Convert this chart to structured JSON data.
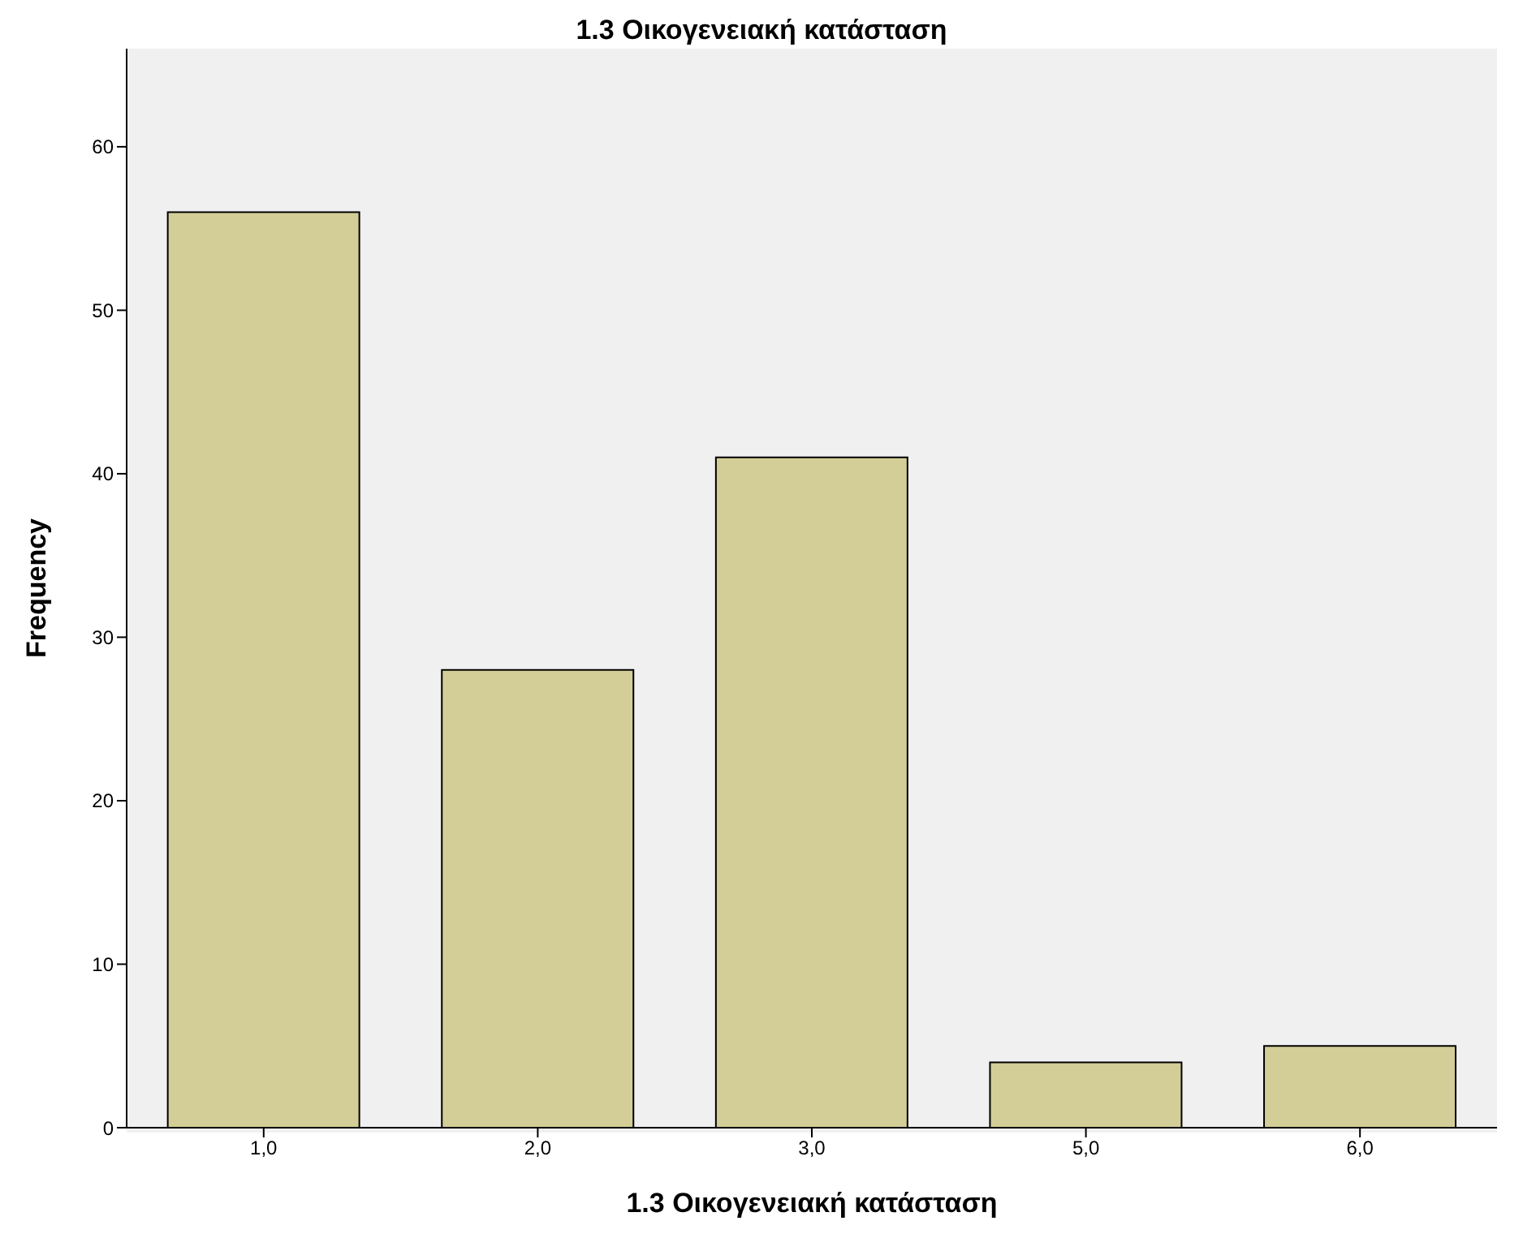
{
  "chart_data": {
    "type": "bar",
    "title": "1.3 Οικογενειακή κατάσταση",
    "xlabel": "1.3 Οικογενειακή κατάσταση",
    "ylabel": "Frequency",
    "categories": [
      "1,0",
      "2,0",
      "3,0",
      "5,0",
      "6,0"
    ],
    "values": [
      56,
      28,
      41,
      4,
      5
    ],
    "color": "#d3ce97",
    "ylim": [
      0,
      66
    ],
    "yticks": [
      0,
      10,
      20,
      30,
      40,
      50,
      60
    ],
    "grid": false,
    "legend": false
  }
}
